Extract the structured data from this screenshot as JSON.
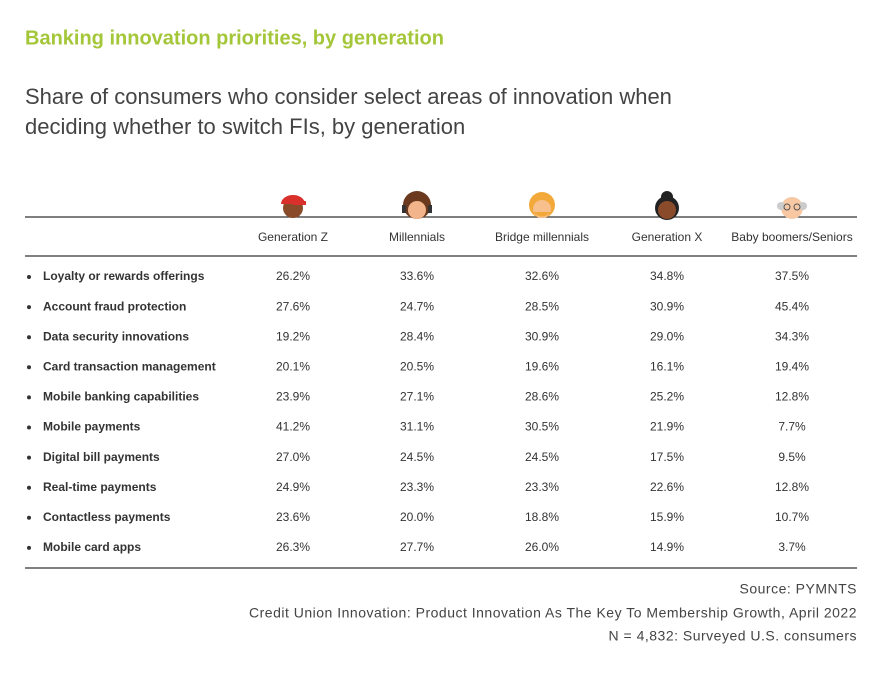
{
  "header": {
    "title": "Banking innovation priorities, by generation",
    "subtitle": [
      "Share of consumers who consider select areas of innovation when",
      "deciding whether to switch FIs, by generation"
    ]
  },
  "table": {
    "columns": [
      "Generation Z",
      "Millennials",
      "Bridge millennials",
      "Generation X",
      "Baby boomers/Seniors"
    ],
    "rows": [
      {
        "label": "Loyalty or rewards offerings",
        "values": [
          "26.2%",
          "33.6%",
          "32.6%",
          "34.8%",
          "37.5%"
        ]
      },
      {
        "label": "Account fraud protection",
        "values": [
          "27.6%",
          "24.7%",
          "28.5%",
          "30.9%",
          "45.4%"
        ]
      },
      {
        "label": "Data security innovations",
        "values": [
          "19.2%",
          "28.4%",
          "30.9%",
          "29.0%",
          "34.3%"
        ]
      },
      {
        "label": "Card transaction management",
        "values": [
          "20.1%",
          "20.5%",
          "19.6%",
          "16.1%",
          "19.4%"
        ]
      },
      {
        "label": "Mobile banking capabilities",
        "values": [
          "23.9%",
          "27.1%",
          "28.6%",
          "25.2%",
          "12.8%"
        ]
      },
      {
        "label": "Mobile payments",
        "values": [
          "41.2%",
          "31.1%",
          "30.5%",
          "21.9%",
          "7.7%"
        ]
      },
      {
        "label": "Digital bill payments",
        "values": [
          "27.0%",
          "24.5%",
          "24.5%",
          "17.5%",
          "9.5%"
        ]
      },
      {
        "label": "Real-time payments",
        "values": [
          "24.9%",
          "23.3%",
          "23.3%",
          "22.6%",
          "12.8%"
        ]
      },
      {
        "label": "Contactless payments",
        "values": [
          "23.6%",
          "20.0%",
          "18.8%",
          "15.9%",
          "10.7%"
        ]
      },
      {
        "label": "Mobile card apps",
        "values": [
          "26.3%",
          "27.7%",
          "26.0%",
          "14.9%",
          "3.7%"
        ]
      }
    ]
  },
  "footer": {
    "source": "Source: PYMNTS",
    "report": "Credit Union Innovation: Product Innovation As The Key To Membership Growth, April 2022",
    "sample": "N = 4,832: Surveyed U.S. consumers"
  }
}
